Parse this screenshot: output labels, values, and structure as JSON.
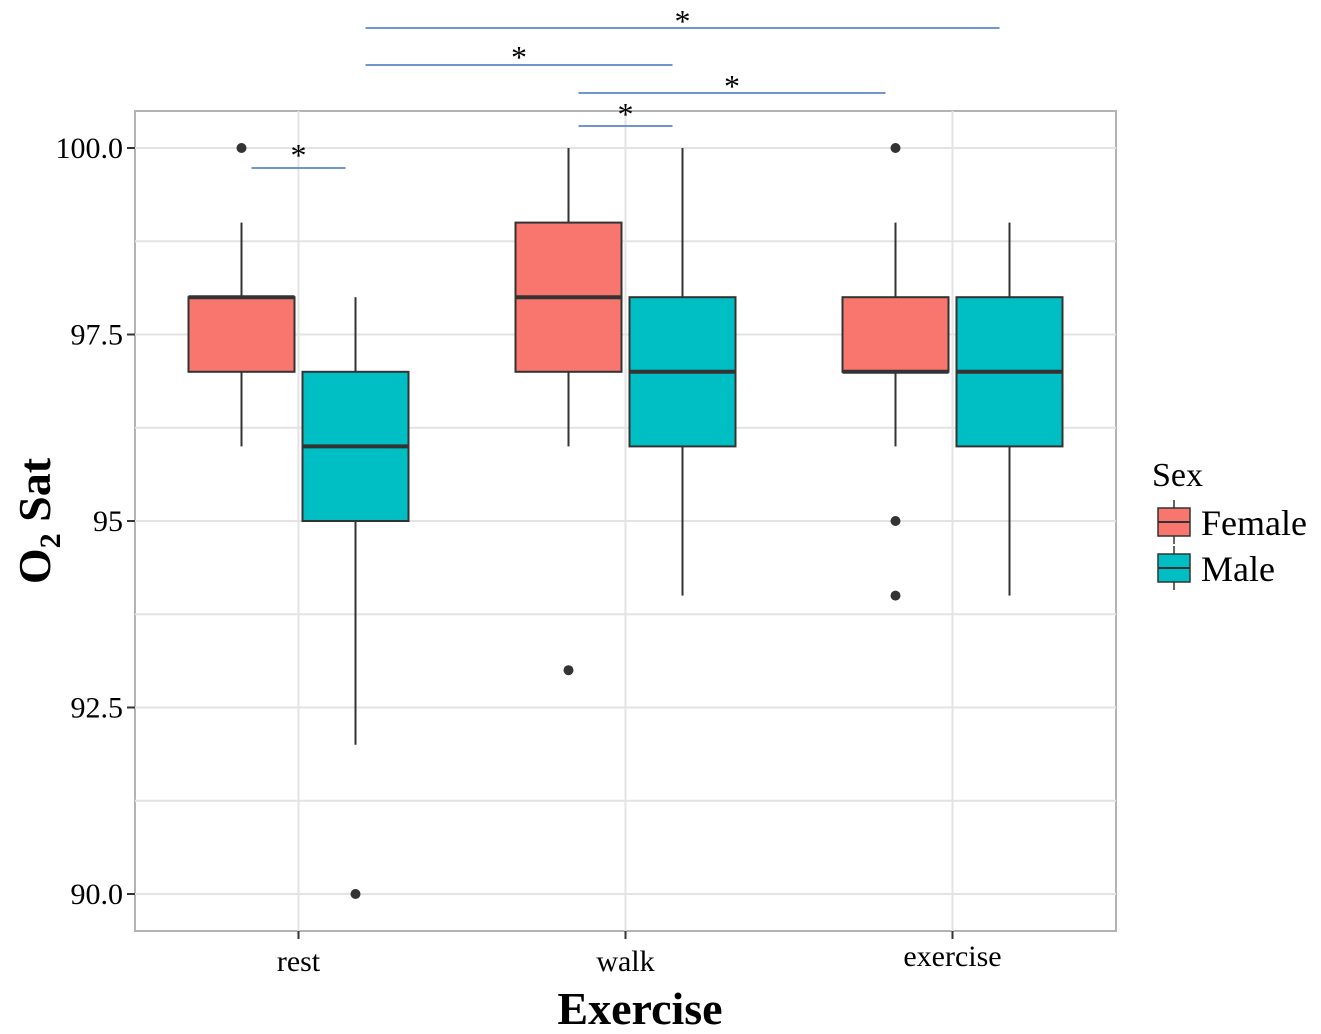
{
  "chart_data": {
    "type": "boxplot",
    "title": "",
    "xlabel": "Exercise",
    "ylabel_main": "O",
    "ylabel_sub": "2",
    "ylabel_rest": " Sat",
    "categories": [
      "rest",
      "walk",
      "exercise"
    ],
    "ylim": [
      89.5,
      100.5
    ],
    "yticks": [
      {
        "value": 90.0,
        "label": "90.0"
      },
      {
        "value": 92.5,
        "label": "92.5"
      },
      {
        "value": 95.0,
        "label": "95"
      },
      {
        "value": 97.5,
        "label": "97.5"
      },
      {
        "value": 100.0,
        "label": "100.0"
      }
    ],
    "grid": true,
    "legend": {
      "title": "Sex",
      "position": "right",
      "entries": [
        {
          "name": "Female",
          "color": "#f8766d"
        },
        {
          "name": "Male",
          "color": "#00bfc4"
        }
      ]
    },
    "series": [
      {
        "name": "Female",
        "color": "#f8766d",
        "boxes": [
          {
            "category": "rest",
            "whisker_low": 96,
            "q1": 97,
            "median": 98,
            "q3": 98,
            "whisker_high": 99,
            "outliers": [
              100
            ]
          },
          {
            "category": "walk",
            "whisker_low": 96,
            "q1": 97,
            "median": 98,
            "q3": 99,
            "whisker_high": 100,
            "outliers": [
              93
            ]
          },
          {
            "category": "exercise",
            "whisker_low": 96,
            "q1": 97,
            "median": 97,
            "q3": 98,
            "whisker_high": 99,
            "outliers": [
              100,
              95,
              94
            ]
          }
        ]
      },
      {
        "name": "Male",
        "color": "#00bfc4",
        "boxes": [
          {
            "category": "rest",
            "whisker_low": 92,
            "q1": 95,
            "median": 96,
            "q3": 97,
            "whisker_high": 98,
            "outliers": [
              90
            ]
          },
          {
            "category": "walk",
            "whisker_low": 94,
            "q1": 96,
            "median": 97,
            "q3": 98,
            "whisker_high": 100,
            "outliers": []
          },
          {
            "category": "exercise",
            "whisker_low": 94,
            "q1": 96,
            "median": 97,
            "q3": 98,
            "whisker_high": 99,
            "outliers": []
          }
        ]
      }
    ],
    "significance": [
      {
        "from": {
          "category": "rest",
          "series": "Female"
        },
        "to": {
          "category": "rest",
          "series": "Male"
        },
        "label": "*"
      },
      {
        "from": {
          "category": "walk",
          "series": "Female"
        },
        "to": {
          "category": "walk",
          "series": "Male"
        },
        "label": "*"
      },
      {
        "from": {
          "category": "walk",
          "series": "Female"
        },
        "to": {
          "category": "exercise",
          "series": "Female"
        },
        "label": "*"
      },
      {
        "from": {
          "category": "rest",
          "series": "Male"
        },
        "to": {
          "category": "walk",
          "series": "Male"
        },
        "label": "*"
      },
      {
        "from": {
          "category": "rest",
          "series": "Male"
        },
        "to": {
          "category": "exercise",
          "series": "Male"
        },
        "label": "*"
      }
    ],
    "significance_color": "#4472c4"
  }
}
